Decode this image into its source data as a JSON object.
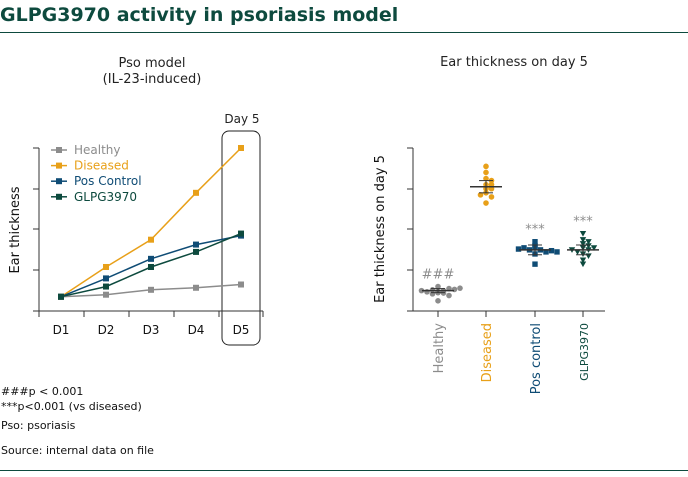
{
  "page": {
    "title": "GLPG3970 activity in psoriasis model"
  },
  "notes": {
    "line1": "###p < 0.001",
    "line2": "***p<0.001 (vs diseased)",
    "line3": "Pso: psoriasis",
    "source": "Source: internal data on file"
  },
  "chart_data": [
    {
      "type": "line",
      "title": "Pso model",
      "subtitle": "(IL-23-induced)",
      "xlabel": "",
      "ylabel": "Ear thickness",
      "categories": [
        "D1",
        "D2",
        "D3",
        "D4",
        "D5"
      ],
      "ylim": [
        0,
        4
      ],
      "highlight_label": "Day 5",
      "legend_position": "top-left",
      "series": [
        {
          "name": "Healthy",
          "color": "#8c8c8c",
          "values": [
            0.35,
            0.4,
            0.52,
            0.57,
            0.65
          ]
        },
        {
          "name": "Diseased",
          "color": "#e8a019",
          "values": [
            0.35,
            1.08,
            1.75,
            2.9,
            4.0
          ]
        },
        {
          "name": "Pos Control",
          "color": "#0f4c75",
          "values": [
            0.35,
            0.8,
            1.28,
            1.63,
            1.85
          ]
        },
        {
          "name": "GLPG3970",
          "color": "#0d4a3e",
          "values": [
            0.35,
            0.6,
            1.08,
            1.45,
            1.9
          ]
        }
      ]
    },
    {
      "type": "scatter",
      "title": "Ear thickness on day 5",
      "xlabel": "",
      "ylabel": "Ear thickness on day 5",
      "ylim": [
        0,
        4
      ],
      "categories": [
        "Healthy",
        "Diseased",
        "Pos control",
        "GLPG3970"
      ],
      "series": [
        {
          "name": "Healthy",
          "color": "#8c8c8c",
          "marker": "circle",
          "mean": 0.5,
          "sem": 0.05,
          "annotation": "###",
          "points": [
            0.45,
            0.48,
            0.5,
            0.52,
            0.55,
            0.47,
            0.53,
            0.5,
            0.44,
            0.56,
            0.42,
            0.6,
            0.25,
            0.38
          ]
        },
        {
          "name": "Diseased",
          "color": "#e8a019",
          "marker": "circle",
          "mean": 3.05,
          "sem": 0.15,
          "annotation": "",
          "points": [
            3.55,
            3.4,
            3.25,
            3.2,
            3.1,
            3.0,
            2.9,
            2.8,
            2.65,
            3.1,
            3.0,
            2.85
          ]
        },
        {
          "name": "Pos control",
          "color": "#0f4c75",
          "marker": "square",
          "mean": 1.5,
          "sem": 0.12,
          "annotation": "***",
          "points": [
            1.7,
            1.6,
            1.55,
            1.5,
            1.5,
            1.45,
            1.4,
            1.55,
            1.48,
            1.52,
            1.15,
            1.45
          ]
        },
        {
          "name": "GLPG3970",
          "color": "#0d4a3e",
          "marker": "triangle-down",
          "mean": 1.5,
          "sem": 0.12,
          "annotation": "***",
          "points": [
            1.9,
            1.75,
            1.65,
            1.6,
            1.55,
            1.5,
            1.45,
            1.4,
            1.35,
            1.55,
            1.25,
            1.5,
            1.7,
            1.15
          ]
        }
      ]
    }
  ]
}
